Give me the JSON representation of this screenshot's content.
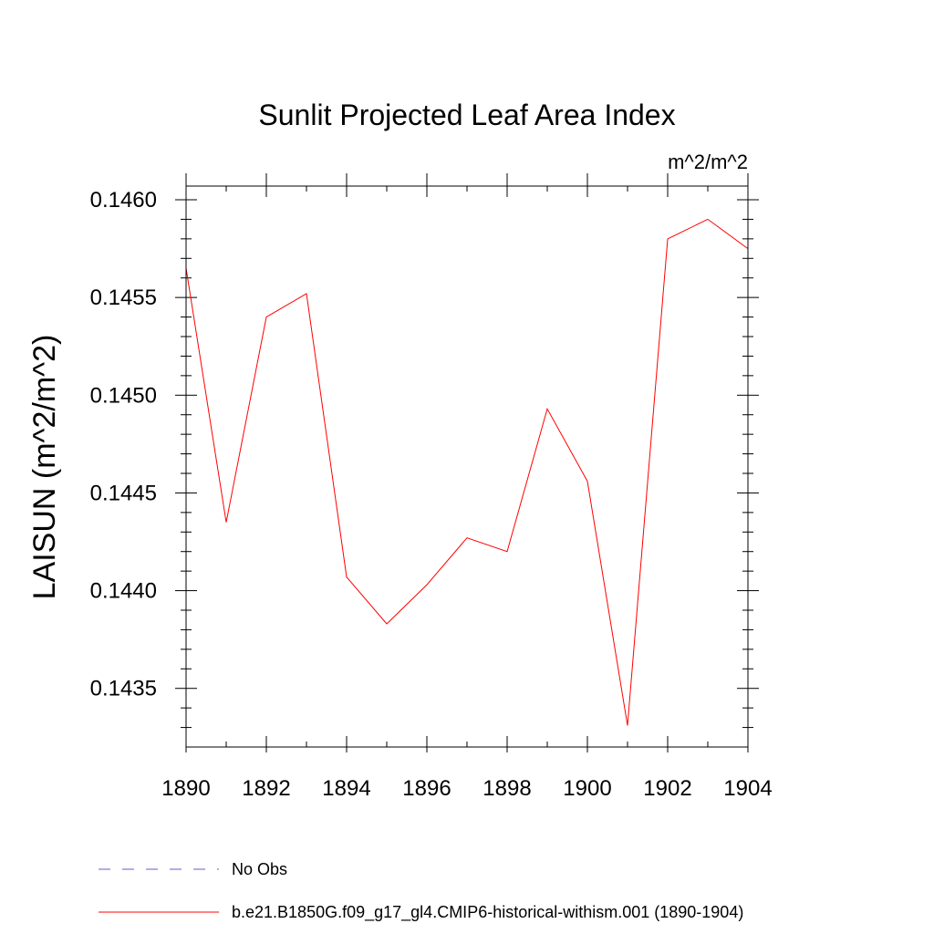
{
  "chart_data": {
    "type": "line",
    "title": "Sunlit Projected Leaf Area Index",
    "units_label": "m^2/m^2",
    "ylabel": "LAISUN  (m^2/m^2)",
    "xlabel": "",
    "xlim": [
      1890,
      1904
    ],
    "ylim": [
      0.1432,
      0.14607
    ],
    "x_ticks": [
      1890,
      1892,
      1894,
      1896,
      1898,
      1900,
      1902,
      1904
    ],
    "x_tick_labels": [
      "1890",
      "1892",
      "1894",
      "1896",
      "1898",
      "1900",
      "1902",
      "1904"
    ],
    "y_ticks": [
      0.1435,
      0.144,
      0.1445,
      0.145,
      0.1455,
      0.146
    ],
    "y_tick_labels": [
      "0.1435",
      "0.1440",
      "0.1445",
      "0.1450",
      "0.1455",
      "0.1460"
    ],
    "grid": false,
    "legend_position": "bottom",
    "series": [
      {
        "name": "b.e21.B1850G.f09_g17_gl4.CMIP6-historical-withism.001 (1890-1904)",
        "color": "#ff0000",
        "x": [
          1890,
          1891,
          1892,
          1893,
          1894,
          1895,
          1896,
          1897,
          1898,
          1899,
          1900,
          1901,
          1902,
          1903,
          1904
        ],
        "values": [
          0.14565,
          0.14435,
          0.1454,
          0.14552,
          0.14407,
          0.14383,
          0.14403,
          0.14427,
          0.1442,
          0.14493,
          0.14456,
          0.14331,
          0.1458,
          0.1459,
          0.14575
        ]
      }
    ],
    "legend_entries": [
      {
        "label": "No Obs",
        "color": "#6a5acd",
        "dash": "dashed"
      },
      {
        "label": "b.e21.B1850G.f09_g17_gl4.CMIP6-historical-withism.001 (1890-1904)",
        "color": "#ff0000",
        "dash": "solid"
      }
    ]
  }
}
